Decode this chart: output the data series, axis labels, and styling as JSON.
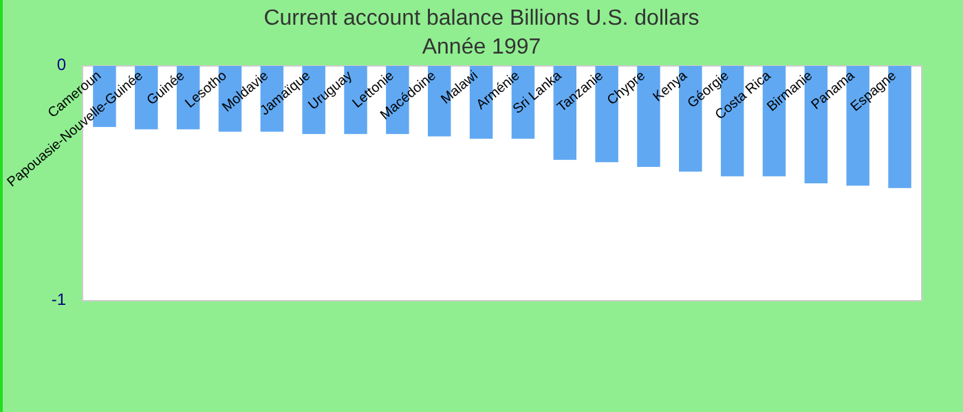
{
  "chart_data": {
    "type": "bar",
    "title": "Current account balance Billions U.S. dollars",
    "subtitle": "Année 1997",
    "categories": [
      "Cameroun",
      "Papouasie-Nouvelle-Guinée",
      "Guinée",
      "Lesotho",
      "Moldavie",
      "Jamaïque",
      "Uruguay",
      "Lettonie",
      "Macédoine",
      "Malawi",
      "Arménie",
      "Sri Lanka",
      "Tanzanie",
      "Chypre",
      "Kenya",
      "Géorgie",
      "Costa Rica",
      "Birmanie",
      "Panama",
      "Espagne"
    ],
    "values": [
      -0.26,
      -0.27,
      -0.27,
      -0.28,
      -0.28,
      -0.29,
      -0.29,
      -0.29,
      -0.3,
      -0.31,
      -0.31,
      -0.4,
      -0.41,
      -0.43,
      -0.45,
      -0.47,
      -0.47,
      -0.5,
      -0.51,
      -0.52
    ],
    "color": "#61a8f2",
    "ylim": [
      -1,
      0
    ],
    "yticks": [
      -1,
      0
    ]
  }
}
